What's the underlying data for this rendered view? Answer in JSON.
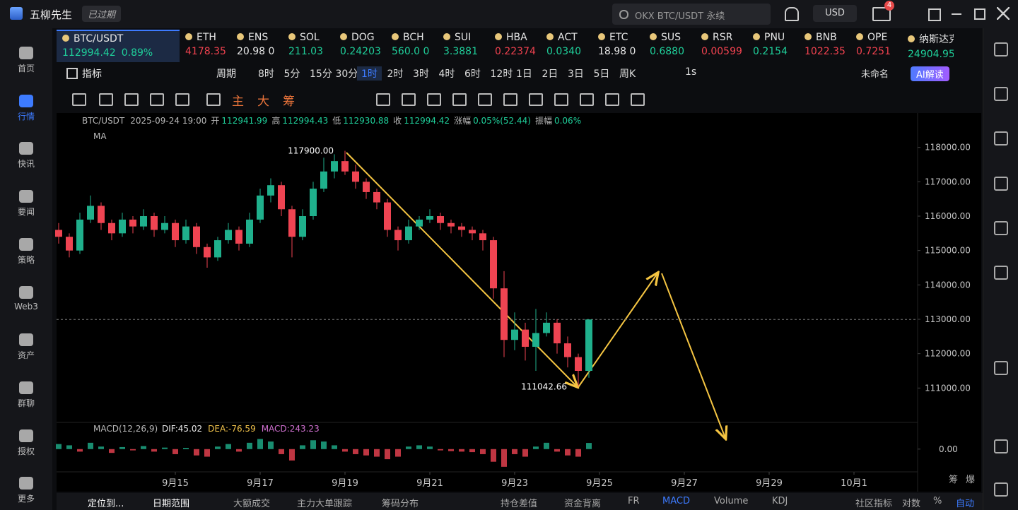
{
  "app": {
    "name": "五柳先生",
    "status": "已过期",
    "search": "OKX BTC/USDT 永续",
    "currency": "USD",
    "badge": "4"
  },
  "nav": {
    "items": [
      "首页",
      "行情",
      "快讯",
      "要闻",
      "策略",
      "Web3",
      "资产",
      "群聊",
      "授权",
      "更多"
    ],
    "active": 1
  },
  "tickers": [
    {
      "symbol": "BTC/USDT",
      "price": "112994.42",
      "change": "0.89%",
      "trend": "up"
    },
    {
      "symbol": "ETH",
      "price": "4178.35",
      "trend": "down"
    },
    {
      "symbol": "ENS",
      "price": "20.98 0",
      "trend": "flat"
    },
    {
      "symbol": "SOL",
      "price": "211.03",
      "trend": "up"
    },
    {
      "symbol": "DOG",
      "price": "0.24203",
      "trend": "up"
    },
    {
      "symbol": "BCH",
      "price": "560.0 0",
      "trend": "up"
    },
    {
      "symbol": "SUI",
      "price": "3.3881",
      "trend": "up"
    },
    {
      "symbol": "HBA",
      "price": "0.22374",
      "trend": "down"
    },
    {
      "symbol": "ACT",
      "price": "0.0340",
      "trend": "up"
    },
    {
      "symbol": "ETC",
      "price": "18.98 0",
      "trend": "flat"
    },
    {
      "symbol": "SUS",
      "price": "0.6880",
      "trend": "up"
    },
    {
      "symbol": "RSR",
      "price": "0.00599",
      "trend": "down"
    },
    {
      "symbol": "PNU",
      "price": "0.2154",
      "trend": "up"
    },
    {
      "symbol": "BNB",
      "price": "1022.35",
      "trend": "down"
    },
    {
      "symbol": "OPE",
      "price": "0.7251",
      "trend": "down"
    },
    {
      "symbol": "纳斯达克",
      "price": "24904.95",
      "trend": "up"
    }
  ],
  "toolbar": {
    "indicator": "指标",
    "period": "周期",
    "intervals": [
      "8时",
      "5分",
      "15分",
      "30分",
      "1时",
      "2时",
      "3时",
      "4时",
      "6时",
      "12时",
      "1日",
      "2日",
      "3日",
      "5日",
      "周K"
    ],
    "active": 4,
    "replay": "1s",
    "layout": "未命名",
    "ai": "AI解读"
  },
  "drawing_tools": [
    "主",
    "大",
    "筹"
  ],
  "info": {
    "symbol": "BTC/USDT",
    "time": "2025-09-24 19:00",
    "fields": [
      {
        "label": "开",
        "value": "112941.99"
      },
      {
        "label": "高",
        "value": "112994.43"
      },
      {
        "label": "低",
        "value": "112930.88"
      },
      {
        "label": "收",
        "value": "112994.42"
      },
      {
        "label": "涨幅",
        "value": "0.05%(52.44)"
      },
      {
        "label": "振幅",
        "value": "0.06%"
      }
    ],
    "indicator": "MA"
  },
  "bottom_tabs": {
    "left": [
      "定位到...",
      "日期范围",
      "大额成交",
      "主力大单跟踪",
      "筹码分布"
    ],
    "right": [
      "持仓差值",
      "资金背离",
      "FR",
      "MACD",
      "Volume",
      "KDJ",
      "社区指标"
    ],
    "active": 3,
    "options": [
      "对数",
      "%",
      "自动"
    ],
    "option_active": 2,
    "axis_tags": [
      "筹",
      "爆"
    ]
  },
  "chart_data": [
    {
      "type": "candlestick",
      "up_color": "#1fb08c",
      "down_color": "#ef4452",
      "x": [
        12.25,
        12.5,
        12.75,
        13,
        13.25,
        13.5,
        13.75,
        14,
        14.25,
        14.5,
        14.75,
        15,
        15.25,
        15.5,
        15.75,
        16,
        16.25,
        16.5,
        16.75,
        17,
        17.25,
        17.5,
        17.75,
        18,
        18.25,
        18.5,
        18.75,
        19,
        19.25,
        19.5,
        19.75,
        20,
        20.25,
        20.5,
        20.75,
        21,
        21.25,
        21.5,
        21.75,
        22,
        22.25,
        22.5,
        22.75,
        23,
        23.25,
        23.5,
        23.75,
        24,
        24.25,
        24.5,
        24.75
      ],
      "open": [
        115600,
        115400,
        115000,
        115900,
        116300,
        115800,
        115500,
        115900,
        115700,
        116000,
        115600,
        115800,
        115300,
        115700,
        115100,
        114800,
        115300,
        115600,
        115200,
        115900,
        116600,
        116900,
        116200,
        115400,
        116000,
        116800,
        117300,
        117600,
        117300,
        117000,
        116700,
        116400,
        115600,
        115300,
        115700,
        115900,
        116000,
        115800,
        115700,
        115600,
        115500,
        115300,
        113900,
        112400,
        112700,
        112200,
        112600,
        112900,
        112300,
        111900,
        111500
      ],
      "high": [
        115800,
        115500,
        116100,
        116600,
        116400,
        115900,
        116100,
        116000,
        116200,
        116100,
        116000,
        115900,
        115900,
        115800,
        115200,
        115400,
        115800,
        115700,
        116100,
        116800,
        117100,
        117000,
        116300,
        116200,
        117000,
        117700,
        117800,
        117900,
        117500,
        117100,
        116800,
        116500,
        115700,
        115900,
        116000,
        116200,
        116100,
        115900,
        115800,
        115700,
        115600,
        115400,
        114400,
        113200,
        112900,
        113300,
        113200,
        113000,
        112500,
        112000,
        113000
      ],
      "low": [
        115200,
        114800,
        114900,
        115800,
        115600,
        115300,
        115400,
        115500,
        115600,
        115400,
        115500,
        115100,
        115200,
        114900,
        114500,
        114700,
        115200,
        115000,
        115100,
        115800,
        116400,
        116000,
        114800,
        115300,
        115900,
        116700,
        117100,
        117200,
        116800,
        116500,
        116200,
        115400,
        115000,
        115200,
        115600,
        115800,
        115600,
        115500,
        115400,
        115300,
        115000,
        113600,
        111900,
        112100,
        111800,
        111500,
        112500,
        112000,
        111600,
        111042.66,
        111300
      ],
      "close": [
        115400,
        115000,
        115900,
        116300,
        115800,
        115500,
        115900,
        115700,
        116000,
        115600,
        115800,
        115300,
        115700,
        115100,
        114800,
        115300,
        115600,
        115200,
        115900,
        116600,
        116900,
        116200,
        115400,
        116000,
        116800,
        117300,
        117600,
        117300,
        117000,
        116700,
        116400,
        115600,
        115300,
        115700,
        115900,
        116000,
        115800,
        115700,
        115600,
        115500,
        115300,
        113900,
        112400,
        112700,
        112200,
        112600,
        112900,
        112300,
        111900,
        111500,
        112994.42
      ],
      "annotations": [
        {
          "x": 19,
          "value": 117900,
          "label": "117900.00"
        },
        {
          "x": 24.5,
          "value": 111042.66,
          "label": "111042.66"
        }
      ],
      "xlim": [
        12.2,
        32.5
      ],
      "xticks": [
        {
          "value": 15,
          "label": "9月15"
        },
        {
          "value": 17,
          "label": "9月17"
        },
        {
          "value": 19,
          "label": "9月19"
        },
        {
          "value": 21,
          "label": "9月21"
        },
        {
          "value": 23,
          "label": "9月23"
        },
        {
          "value": 25,
          "label": "9月25"
        },
        {
          "value": 27,
          "label": "9月27"
        },
        {
          "value": 29,
          "label": "9月29"
        },
        {
          "value": 31,
          "label": "10月1"
        }
      ],
      "ylim": [
        110000,
        119000
      ],
      "yticks": [
        {
          "value": 111000,
          "label": "111000.00"
        },
        {
          "value": 112000,
          "label": "112000.00"
        },
        {
          "value": 113000,
          "label": "113000.00"
        },
        {
          "value": 114000,
          "label": "114000.00"
        },
        {
          "value": 115000,
          "label": "115000.00"
        },
        {
          "value": 116000,
          "label": "116000.00"
        },
        {
          "value": 117000,
          "label": "117000.00"
        },
        {
          "value": 118000,
          "label": "118000.00"
        }
      ]
    },
    {
      "type": "bar",
      "title": "MACD(12,26,9)",
      "legend": [
        "DIF:45.02",
        "DEA:-76.59",
        "MACD:243.23"
      ],
      "legend_colors": [
        "#e8e8e8",
        "#f0c24b",
        "#d070d0"
      ],
      "up_color": "#1fb08c",
      "down_color": "#ef4452",
      "x": [
        12.25,
        12.5,
        12.75,
        13,
        13.25,
        13.5,
        13.75,
        14,
        14.25,
        14.5,
        14.75,
        15,
        15.25,
        15.5,
        15.75,
        16,
        16.25,
        16.5,
        16.75,
        17,
        17.25,
        17.5,
        17.75,
        18,
        18.25,
        18.5,
        18.75,
        19,
        19.25,
        19.5,
        19.75,
        20,
        20.25,
        20.5,
        20.75,
        21,
        21.25,
        21.5,
        21.75,
        22,
        22.25,
        22.5,
        22.75,
        23,
        23.25,
        23.5,
        23.75,
        24,
        24.25,
        24.5,
        24.75
      ],
      "values": [
        200,
        150,
        -100,
        250,
        100,
        -150,
        80,
        -50,
        120,
        -100,
        60,
        -200,
        50,
        -250,
        -300,
        100,
        200,
        -100,
        250,
        400,
        300,
        -200,
        -450,
        150,
        350,
        300,
        150,
        -100,
        -200,
        -250,
        -300,
        -400,
        -300,
        100,
        150,
        100,
        -50,
        -80,
        -100,
        -120,
        -200,
        -500,
        -700,
        -200,
        -300,
        100,
        250,
        -100,
        -250,
        -300,
        243.23
      ],
      "xlim": [
        12.2,
        32.5
      ],
      "ylim": [
        -900,
        1000
      ],
      "yticks": [
        {
          "value": 0,
          "label": "0.00"
        }
      ]
    }
  ]
}
